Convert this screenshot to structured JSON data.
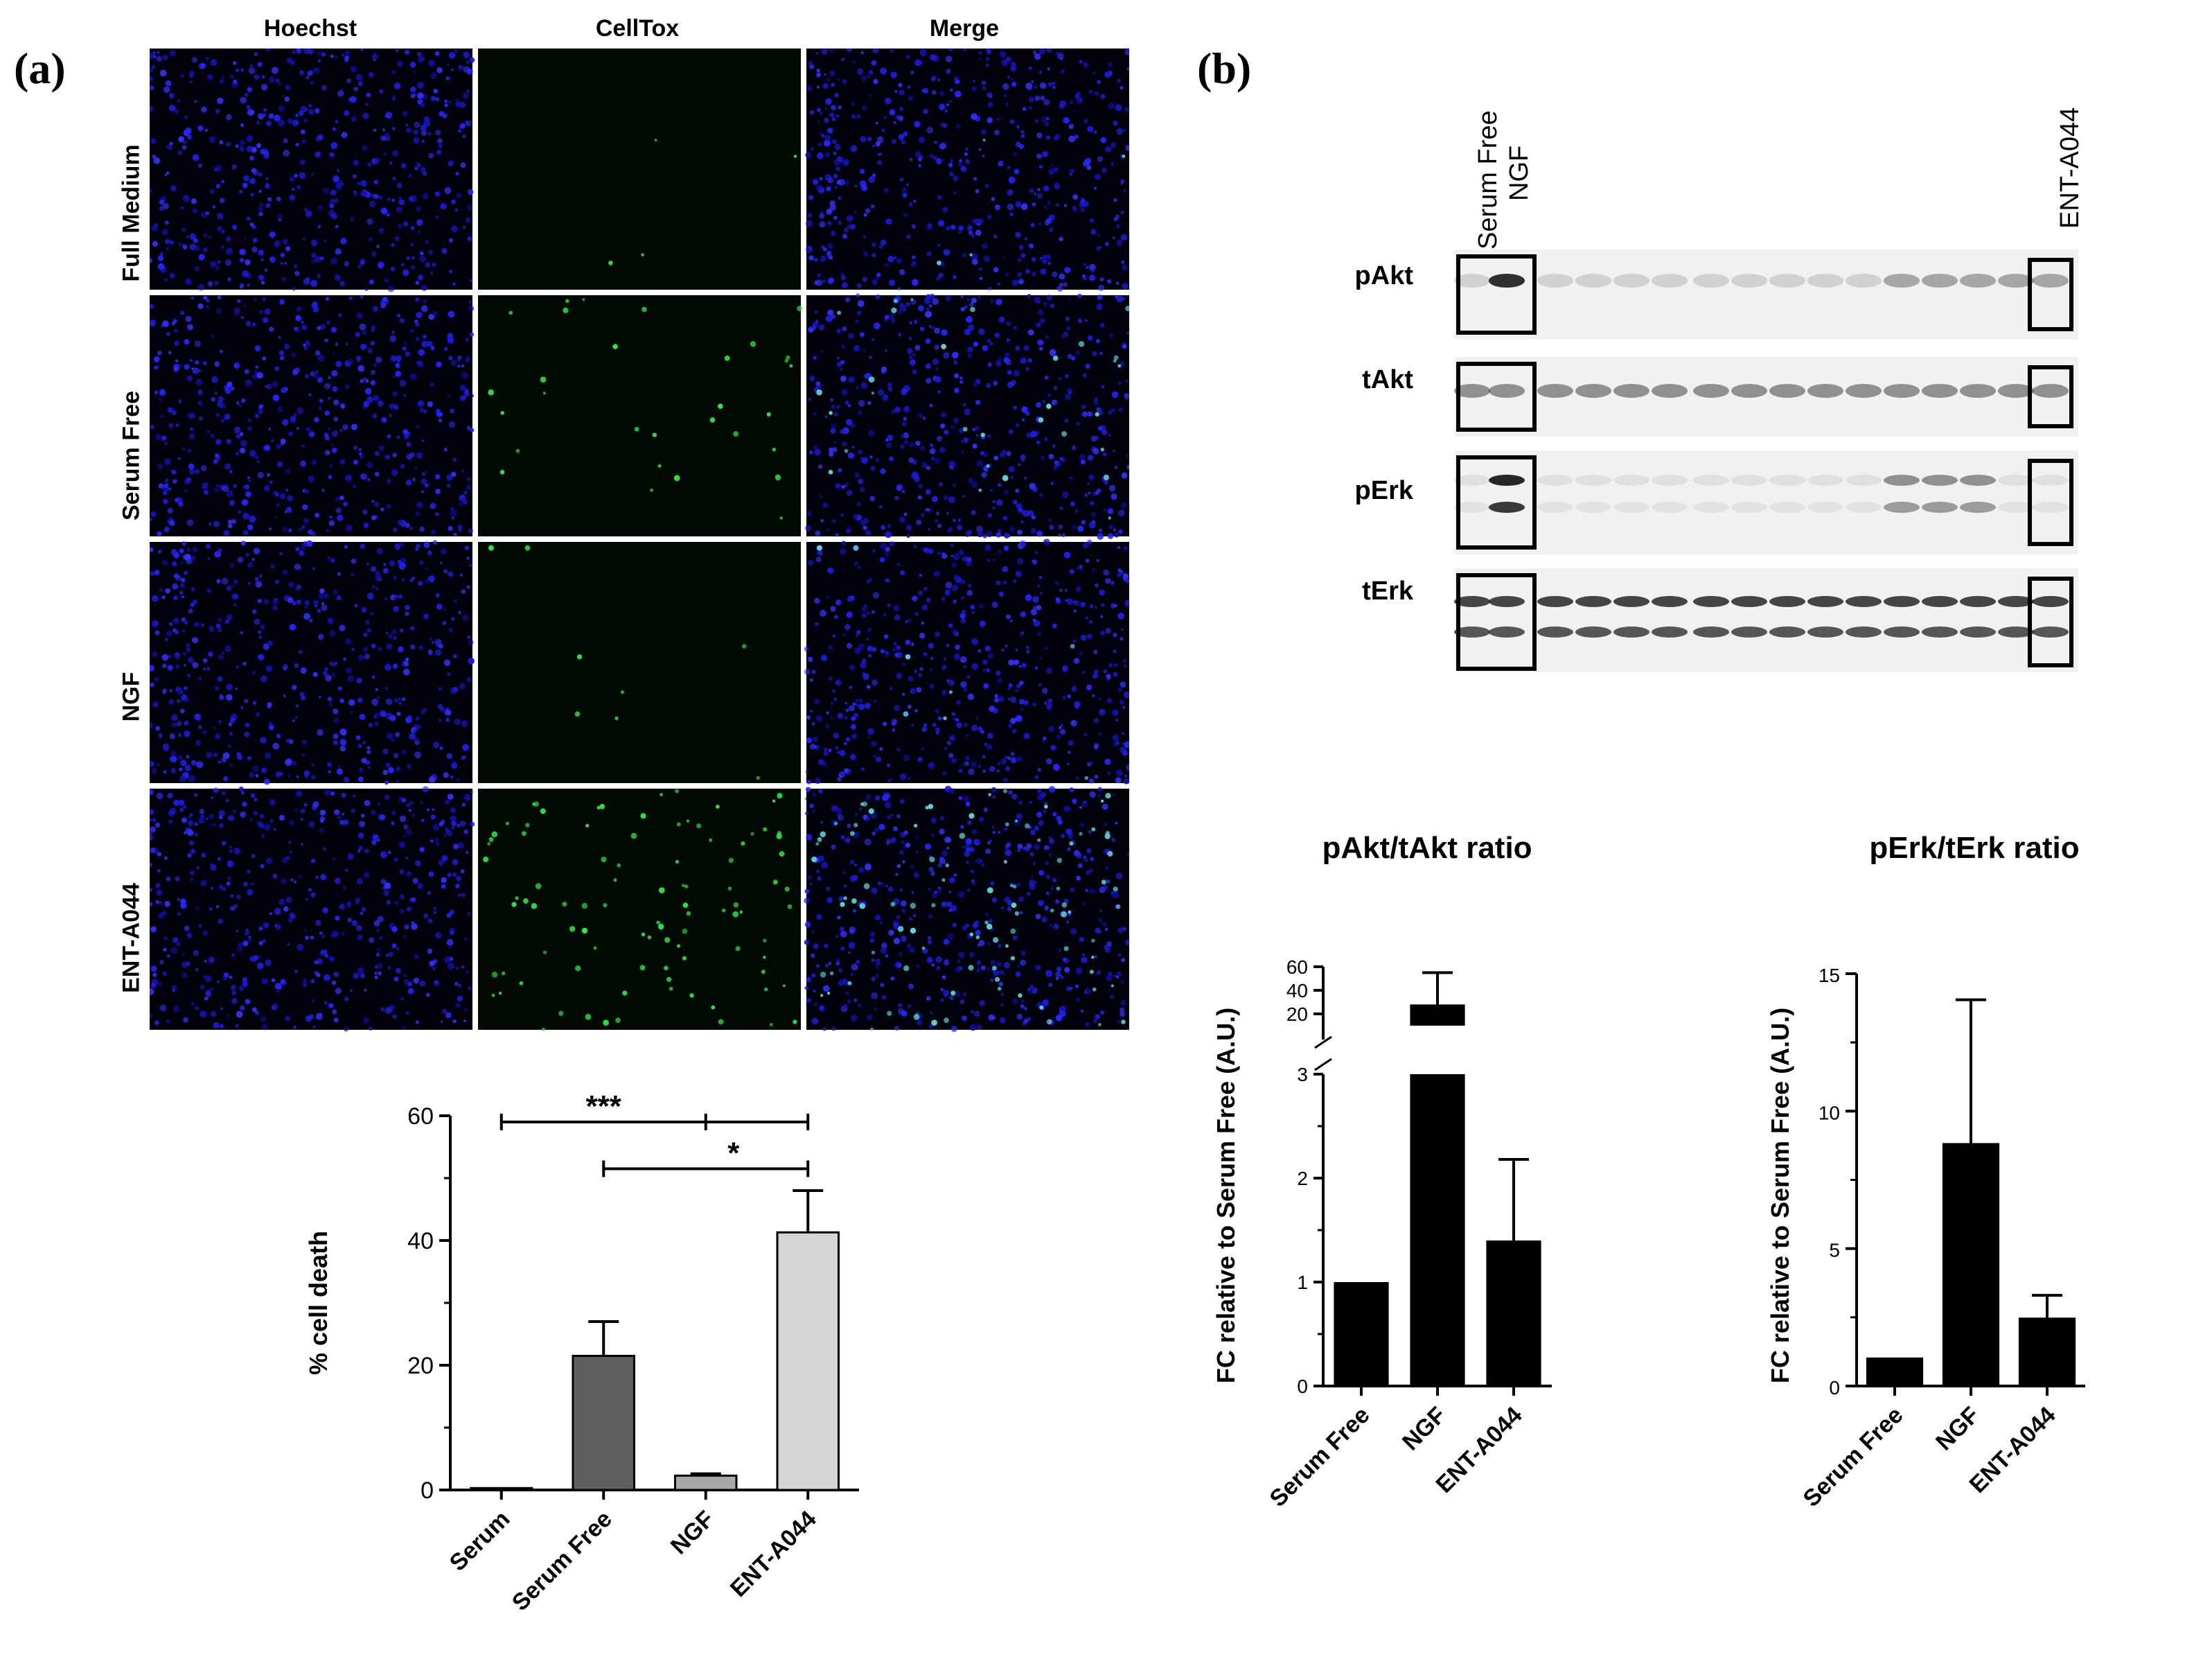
{
  "panel_a": {
    "label": "(a)",
    "columns": [
      "Hoechst",
      "CellTox",
      "Merge"
    ],
    "rows": [
      "Full Medium",
      "Serum Free",
      "NGF",
      "ENT-A044"
    ]
  },
  "panel_b": {
    "label": "(b)",
    "blot_lane_labels": [
      "Serum Free",
      "NGF",
      "ENT-A044"
    ],
    "blot_rows": [
      "pAkt",
      "tAkt",
      "pErk",
      "tErk"
    ]
  },
  "chart_data": [
    {
      "id": "cell-death",
      "type": "bar",
      "title": "",
      "xlabel": "",
      "ylabel": "% cell death",
      "ylim": [
        0,
        60
      ],
      "yticks": [
        0,
        20,
        40,
        60
      ],
      "categories": [
        "Serum",
        "Serum Free",
        "NGF",
        "ENT-A044"
      ],
      "values": [
        0.3,
        21.5,
        2.3,
        41.3
      ],
      "errors": [
        0,
        5.5,
        0.3,
        6.7
      ],
      "colors": [
        "#1a1a1a",
        "#5f5f5f",
        "#a8a8a8",
        "#d4d4d4"
      ],
      "significance": [
        {
          "label": "***",
          "from": "Serum",
          "to": "ENT-A044"
        },
        {
          "label": "*",
          "from": "Serum Free",
          "to": "ENT-A044"
        }
      ]
    },
    {
      "id": "pakt-ratio",
      "type": "bar",
      "title": "pAkt/tAkt ratio",
      "ylabel": "FC relative to Serum Free (A.U.)",
      "categories": [
        "Serum Free",
        "NGF",
        "ENT-A044"
      ],
      "values": [
        1.0,
        28,
        1.4
      ],
      "errors": [
        0,
        27,
        0.78
      ],
      "broken_axis": true,
      "lower_ylim": [
        0,
        3
      ],
      "lower_yticks": [
        0,
        1,
        2,
        3
      ],
      "upper_ylim": [
        10,
        60
      ],
      "upper_yticks": [
        20,
        40,
        60
      ],
      "color": "#000000"
    },
    {
      "id": "perk-ratio",
      "type": "bar",
      "title": "pErk/tErk ratio",
      "ylabel": "FC relative to Serum Free (A.U.)",
      "categories": [
        "Serum Free",
        "NGF",
        "ENT-A044"
      ],
      "values": [
        1.0,
        8.8,
        2.45
      ],
      "errors": [
        0,
        5.25,
        0.85
      ],
      "ylim": [
        0,
        15
      ],
      "yticks": [
        0,
        5,
        10,
        15
      ],
      "color": "#000000"
    }
  ]
}
